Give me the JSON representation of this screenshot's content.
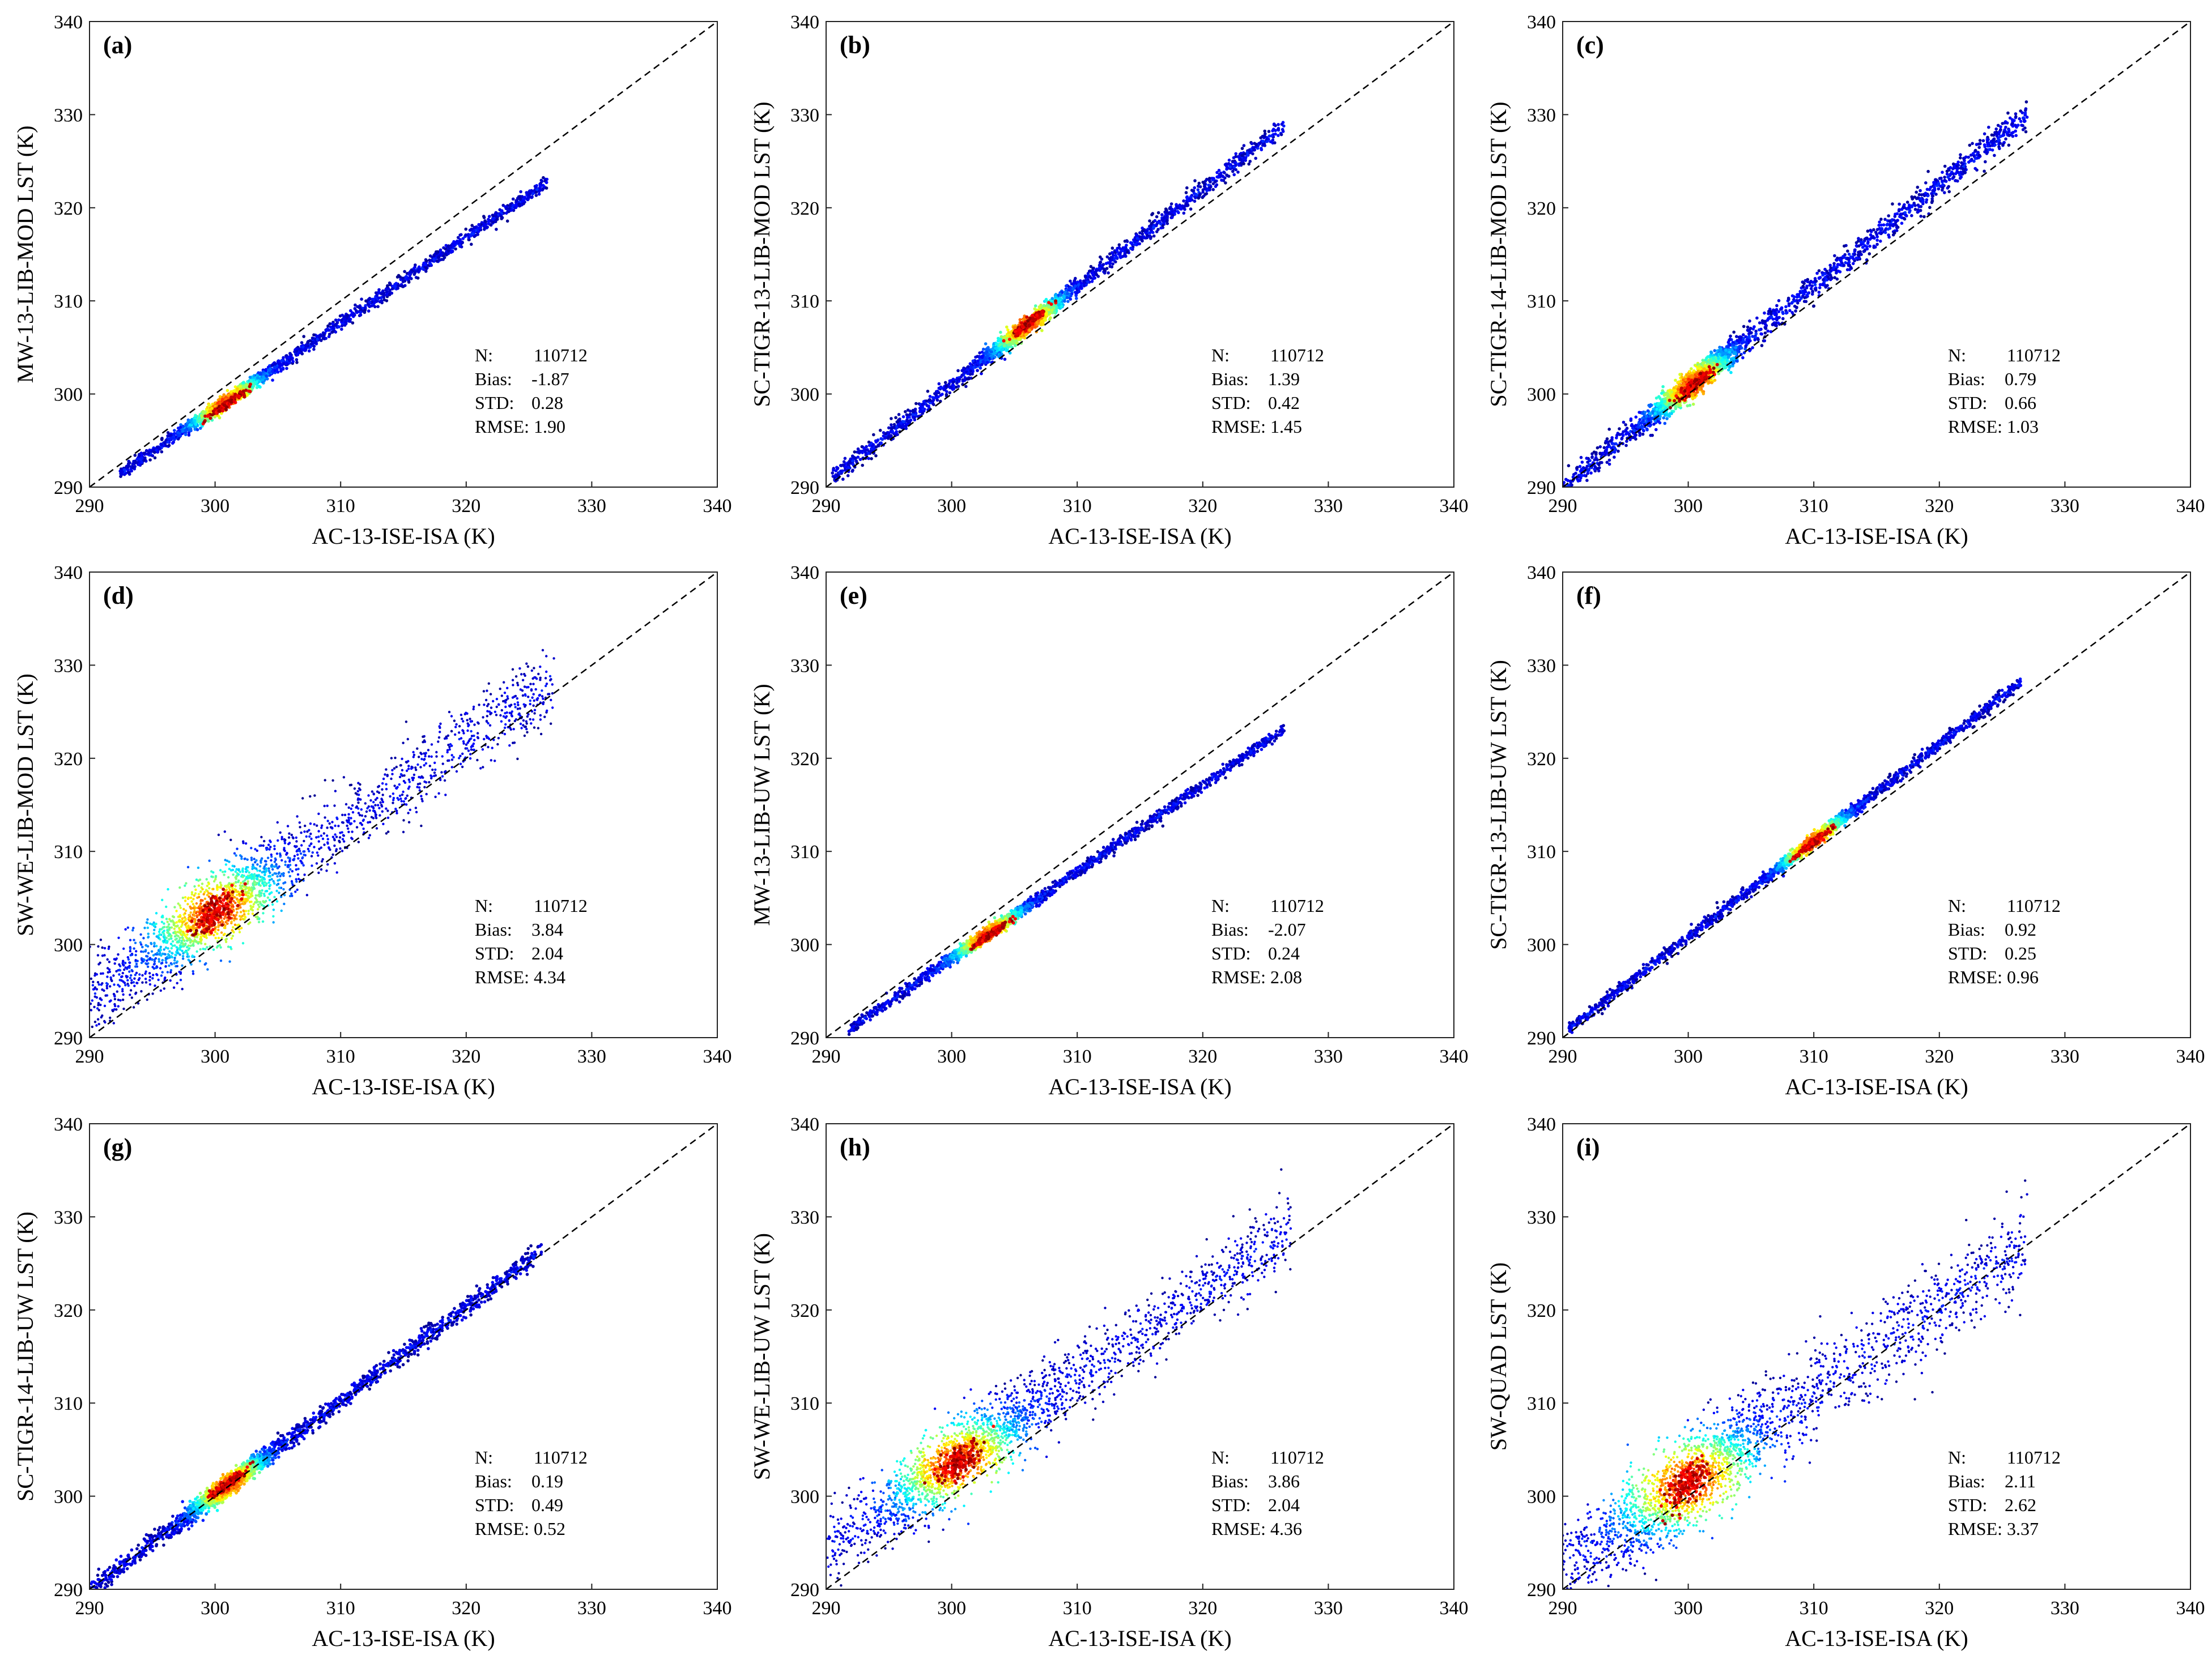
{
  "chart_data": [
    {
      "type": "scatter",
      "panel_label": "(a)",
      "xlabel": "AC-13-ISE-ISA (K)",
      "ylabel": "MW-13-LIB-MOD LST (K)",
      "xlim": [
        290,
        340
      ],
      "ylim": [
        290,
        340
      ],
      "xticks": [
        "290",
        "300",
        "310",
        "320",
        "330",
        "340"
      ],
      "yticks": [
        "290",
        "300",
        "310",
        "320",
        "330",
        "340"
      ],
      "identity_line": true,
      "density": {
        "center": [
          308,
          307
        ],
        "core": [
          301,
          299
        ],
        "slope": 0.92,
        "intercept": 22.4,
        "x_range": [
          292.4,
          326.5
        ],
        "spread": 0.28,
        "cloud": 0.1
      },
      "stats": {
        "n_label": "N:",
        "n": "110712",
        "bias_label": "Bias:",
        "bias": "-1.87",
        "std_label": "STD:",
        "std": "0.28",
        "rmse_label": "RMSE:",
        "rmse": "1.90"
      }
    },
    {
      "type": "scatter",
      "panel_label": "(b)",
      "xlabel": "AC-13-ISE-ISA (K)",
      "ylabel": "SC-TIGR-13-LIB-MOD LST (K)",
      "xlim": [
        290,
        340
      ],
      "ylim": [
        290,
        340
      ],
      "xticks": [
        "290",
        "300",
        "310",
        "320",
        "330",
        "340"
      ],
      "yticks": [
        "290",
        "300",
        "310",
        "320",
        "330",
        "340"
      ],
      "identity_line": true,
      "density": {
        "center": [
          308,
          309.5
        ],
        "core": [
          306,
          307.5
        ],
        "slope": 1.05,
        "intercept": -14,
        "x_range": [
          290.5,
          326.5
        ],
        "spread": 0.42,
        "cloud": 0.12
      },
      "stats": {
        "n_label": "N:",
        "n": "110712",
        "bias_label": "Bias:",
        "bias": "1.39",
        "std_label": "STD:",
        "std": "0.42",
        "rmse_label": "RMSE:",
        "rmse": "1.45"
      }
    },
    {
      "type": "scatter",
      "panel_label": "(c)",
      "xlabel": "AC-13-ISE-ISA (K)",
      "ylabel": "SC-TIGR-14-LIB-MOD LST (K)",
      "xlim": [
        290,
        340
      ],
      "ylim": [
        290,
        340
      ],
      "xticks": [
        "290",
        "300",
        "310",
        "320",
        "330",
        "340"
      ],
      "yticks": [
        "290",
        "300",
        "310",
        "320",
        "330",
        "340"
      ],
      "identity_line": true,
      "density": {
        "center": [
          300.5,
          301
        ],
        "core": [
          300.5,
          301
        ],
        "slope": 1.08,
        "intercept": -23.2,
        "x_range": [
          290,
          327
        ],
        "spread": 0.66,
        "cloud": 0.2
      },
      "stats": {
        "n_label": "N:",
        "n": "110712",
        "bias_label": "Bias:",
        "bias": "0.79",
        "std_label": "STD:",
        "std": "0.66",
        "rmse_label": "RMSE:",
        "rmse": "1.03"
      }
    },
    {
      "type": "scatter",
      "panel_label": "(d)",
      "xlabel": "AC-13-ISE-ISA (K)",
      "ylabel": "SW-WE-LIB-MOD LST (K)",
      "xlim": [
        290,
        340
      ],
      "ylim": [
        290,
        340
      ],
      "xticks": [
        "290",
        "300",
        "310",
        "320",
        "330",
        "340"
      ],
      "yticks": [
        "290",
        "300",
        "310",
        "320",
        "330",
        "340"
      ],
      "identity_line": true,
      "density": {
        "center": [
          300,
          303.5
        ],
        "core": [
          300,
          303.5
        ],
        "slope": 0.92,
        "intercept": 27.5,
        "x_range": [
          290,
          327
        ],
        "spread": 2.04,
        "cloud": 0.55
      },
      "stats": {
        "n_label": "N:",
        "n": "110712",
        "bias_label": "Bias:",
        "bias": "3.84",
        "std_label": "STD:",
        "std": "2.04",
        "rmse_label": "RMSE:",
        "rmse": "4.34"
      }
    },
    {
      "type": "scatter",
      "panel_label": "(e)",
      "xlabel": "AC-13-ISE-ISA (K)",
      "ylabel": "MW-13-LIB-UW LST (K)",
      "xlim": [
        290,
        340
      ],
      "ylim": [
        290,
        340
      ],
      "xticks": [
        "290",
        "300",
        "310",
        "320",
        "330",
        "340"
      ],
      "yticks": [
        "290",
        "300",
        "310",
        "320",
        "330",
        "340"
      ],
      "identity_line": true,
      "density": {
        "center": [
          308,
          306
        ],
        "core": [
          303,
          301
        ],
        "slope": 0.93,
        "intercept": 19.5,
        "x_range": [
          291.8,
          326.5
        ],
        "spread": 0.24,
        "cloud": 0.1
      },
      "stats": {
        "n_label": "N:",
        "n": "110712",
        "bias_label": "Bias:",
        "bias": "-2.07",
        "std_label": "STD:",
        "std": "0.24",
        "rmse_label": "RMSE:",
        "rmse": "2.08"
      }
    },
    {
      "type": "scatter",
      "panel_label": "(f)",
      "xlabel": "AC-13-ISE-ISA (K)",
      "ylabel": "SC-TIGR-13-LIB-UW LST (K)",
      "xlim": [
        290,
        340
      ],
      "ylim": [
        290,
        340
      ],
      "xticks": [
        "290",
        "300",
        "310",
        "320",
        "330",
        "340"
      ],
      "yticks": [
        "290",
        "300",
        "310",
        "320",
        "330",
        "340"
      ],
      "identity_line": true,
      "density": {
        "center": [
          308,
          309
        ],
        "core": [
          310,
          311
        ],
        "slope": 1.035,
        "intercept": -9.7,
        "x_range": [
          290.5,
          326.5
        ],
        "spread": 0.25,
        "cloud": 0.1
      },
      "stats": {
        "n_label": "N:",
        "n": "110712",
        "bias_label": "Bias:",
        "bias": "0.92",
        "std_label": "STD:",
        "std": "0.25",
        "rmse_label": "RMSE:",
        "rmse": "0.96"
      }
    },
    {
      "type": "scatter",
      "panel_label": "(g)",
      "xlabel": "AC-13-ISE-ISA (K)",
      "ylabel": "SC-TIGR-14-LIB-UW LST (K)",
      "xlim": [
        290,
        340
      ],
      "ylim": [
        290,
        340
      ],
      "xticks": [
        "290",
        "300",
        "310",
        "320",
        "330",
        "340"
      ],
      "yticks": [
        "290",
        "300",
        "310",
        "320",
        "330",
        "340"
      ],
      "identity_line": true,
      "density": {
        "center": [
          301,
          301.3
        ],
        "core": [
          301,
          301.3
        ],
        "slope": 1.01,
        "intercept": -2.9,
        "x_range": [
          290,
          326
        ],
        "spread": 0.49,
        "cloud": 0.15
      },
      "stats": {
        "n_label": "N:",
        "n": "110712",
        "bias_label": "Bias:",
        "bias": "0.19",
        "std_label": "STD:",
        "std": "0.49",
        "rmse_label": "RMSE:",
        "rmse": "0.52"
      }
    },
    {
      "type": "scatter",
      "panel_label": "(h)",
      "xlabel": "AC-13-ISE-ISA (K)",
      "ylabel": "SW-WE-LIB-UW LST (K)",
      "xlim": [
        290,
        340
      ],
      "ylim": [
        290,
        340
      ],
      "xticks": [
        "290",
        "300",
        "310",
        "320",
        "330",
        "340"
      ],
      "yticks": [
        "290",
        "300",
        "310",
        "320",
        "330",
        "340"
      ],
      "identity_line": true,
      "density": {
        "center": [
          300.5,
          303.5
        ],
        "core": [
          300.5,
          303.5
        ],
        "slope": 0.92,
        "intercept": 27.5,
        "x_range": [
          290,
          327
        ],
        "spread": 2.04,
        "cloud": 0.55
      },
      "stats": {
        "n_label": "N:",
        "n": "110712",
        "bias_label": "Bias:",
        "bias": "3.86",
        "std_label": "STD:",
        "std": "2.04",
        "rmse_label": "RMSE:",
        "rmse": "4.36"
      }
    },
    {
      "type": "scatter",
      "panel_label": "(i)",
      "xlabel": "AC-13-ISE-ISA (K)",
      "ylabel": "SW-QUAD LST (K)",
      "xlim": [
        290,
        340
      ],
      "ylim": [
        290,
        340
      ],
      "xticks": [
        "290",
        "300",
        "310",
        "320",
        "330",
        "340"
      ],
      "yticks": [
        "290",
        "300",
        "310",
        "320",
        "330",
        "340"
      ],
      "identity_line": true,
      "density": {
        "center": [
          300,
          301.5
        ],
        "core": [
          300,
          301.5
        ],
        "slope": 0.95,
        "intercept": 16.5,
        "x_range": [
          290,
          327
        ],
        "spread": 2.62,
        "cloud": 0.65
      },
      "stats": {
        "n_label": "N:",
        "n": "110712",
        "bias_label": "Bias:",
        "bias": "2.11",
        "std_label": "STD:",
        "std": "2.62",
        "rmse_label": "RMSE:",
        "rmse": "3.37"
      }
    }
  ]
}
